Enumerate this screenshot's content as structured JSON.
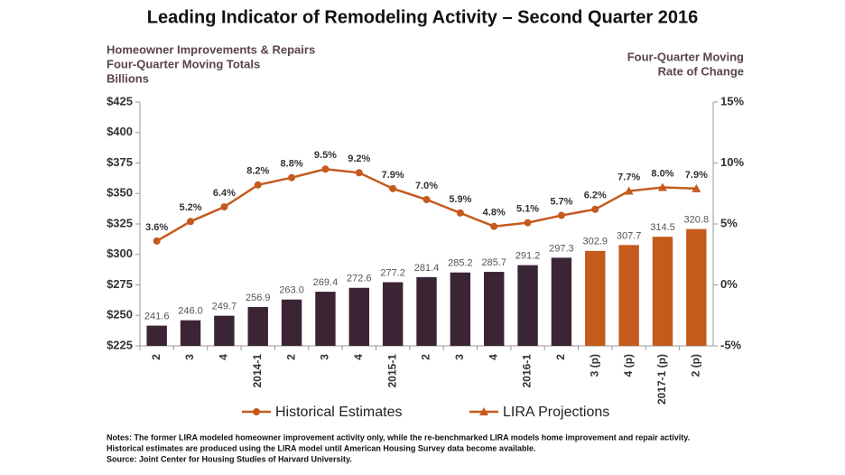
{
  "chart_data": {
    "type": "bar",
    "title": "Leading Indicator of Remodeling Activity – Second Quarter 2016",
    "y_label": [
      "Homeowner Improvements & Repairs",
      "Four-Quarter Moving Totals",
      "Billions"
    ],
    "y2_label": [
      "Four-Quarter Moving",
      "Rate of Change"
    ],
    "categories": [
      "2",
      "3",
      "4",
      "2014-1",
      "2",
      "3",
      "4",
      "2015-1",
      "2",
      "3",
      "4",
      "2016-1",
      "2",
      "3 (p)",
      "4 (p)",
      "2017-1 (p)",
      "2 (p)"
    ],
    "series": [
      {
        "type": "bar",
        "values": [
          241.6,
          246.0,
          249.7,
          256.9,
          263.0,
          269.4,
          272.6,
          277.2,
          281.4,
          285.2,
          285.7,
          291.2,
          297.3,
          302.9,
          307.7,
          314.5,
          320.8
        ],
        "value_labels": [
          "241.6",
          "246.0",
          "249.7",
          "256.9",
          "263.0",
          "269.4",
          "272.6",
          "277.2",
          "281.4",
          "285.2",
          "285.7",
          "291.2",
          "297.3",
          "302.9",
          "307.7",
          "314.5",
          "320.8"
        ],
        "colors": [
          "#3b2535",
          "#3b2535",
          "#3b2535",
          "#3b2535",
          "#3b2535",
          "#3b2535",
          "#3b2535",
          "#3b2535",
          "#3b2535",
          "#3b2535",
          "#3b2535",
          "#3b2535",
          "#3b2535",
          "#c55a1d",
          "#c55a1d",
          "#c55a1d",
          "#c55a1d"
        ]
      },
      {
        "name": "Historical Estimates",
        "type": "line",
        "axis": "y2",
        "color": "#c55a1d",
        "marker": "circle",
        "values": [
          3.6,
          5.2,
          6.4,
          8.2,
          8.8,
          9.5,
          9.2,
          7.9,
          7.0,
          5.9,
          4.8,
          5.1,
          5.7,
          6.2,
          null,
          null,
          null
        ],
        "value_labels": [
          "3.6%",
          "5.2%",
          "6.4%",
          "8.2%",
          "8.8%",
          "9.5%",
          "9.2%",
          "7.9%",
          "7.0%",
          "5.9%",
          "4.8%",
          "5.1%",
          "5.7%",
          "6.2%",
          null,
          null,
          null
        ]
      },
      {
        "name": "LIRA Projections",
        "type": "line",
        "axis": "y2",
        "color": "#c55a1d",
        "marker": "triangle",
        "values": [
          null,
          null,
          null,
          null,
          null,
          null,
          null,
          null,
          null,
          null,
          null,
          null,
          null,
          6.2,
          7.7,
          8.0,
          7.9
        ],
        "value_labels": [
          null,
          null,
          null,
          null,
          null,
          null,
          null,
          null,
          null,
          null,
          null,
          null,
          null,
          null,
          "7.7%",
          "8.0%",
          "7.9%"
        ]
      }
    ],
    "ylim": [
      225,
      425
    ],
    "yticks": [
      {
        "value": 225,
        "label": "$225"
      },
      {
        "value": 250,
        "label": "$250"
      },
      {
        "value": 275,
        "label": "$275"
      },
      {
        "value": 300,
        "label": "$300"
      },
      {
        "value": 325,
        "label": "$325"
      },
      {
        "value": 350,
        "label": "$350"
      },
      {
        "value": 375,
        "label": "$375"
      },
      {
        "value": 400,
        "label": "$400"
      },
      {
        "value": 425,
        "label": "$425"
      }
    ],
    "y2lim": [
      -5,
      15
    ],
    "y2ticks": [
      {
        "value": -5,
        "label": "-5%"
      },
      {
        "value": 0,
        "label": "0%"
      },
      {
        "value": 5,
        "label": "5%"
      },
      {
        "value": 10,
        "label": "10%"
      },
      {
        "value": 15,
        "label": "15%"
      }
    ]
  },
  "notes": [
    "Notes: The former LIRA modeled homeowner improvement activity only, while the re-benchmarked LIRA models home improvement and repair activity.",
    "Historical estimates are produced using the LIRA model until American Housing Survey data become available.",
    "Source: Joint Center for Housing Studies of Harvard University."
  ]
}
